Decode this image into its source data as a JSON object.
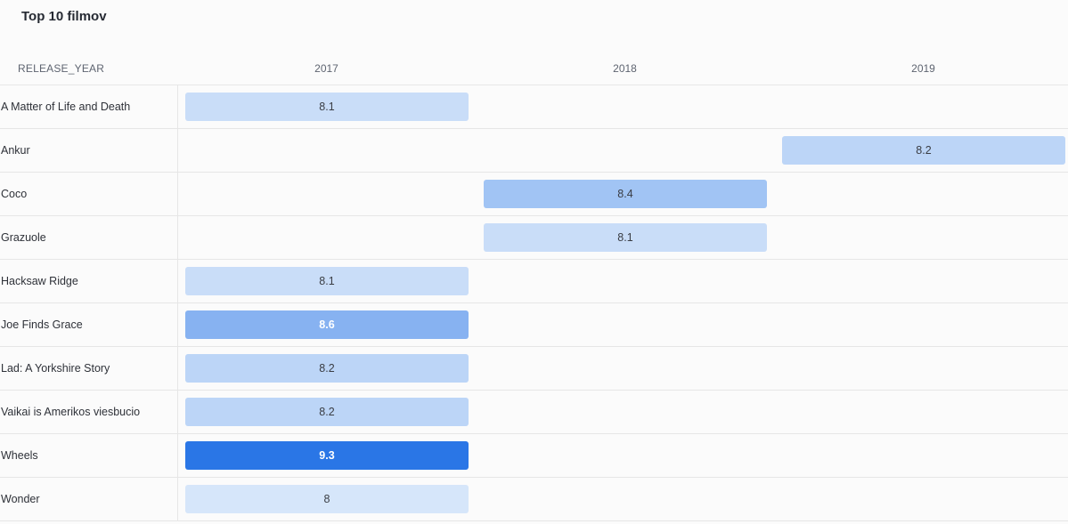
{
  "title": "Top 10 filmov",
  "header_label": "RELEASE_YEAR",
  "colors": {
    "min": "#d6e6fa",
    "max": "#2a76e6",
    "text_dark": "#3a3d44",
    "text_light": "#ffffff"
  },
  "chart_data": {
    "type": "heatmap",
    "title": "Top 10 filmov",
    "xlabel": "RELEASE_YEAR",
    "columns": [
      "2017",
      "2018",
      "2019"
    ],
    "rows": [
      {
        "name": "A Matter of Life and Death",
        "year": "2017",
        "value": 8.1
      },
      {
        "name": "Ankur",
        "year": "2019",
        "value": 8.2
      },
      {
        "name": "Coco",
        "year": "2018",
        "value": 8.4
      },
      {
        "name": "Grazuole",
        "year": "2018",
        "value": 8.1
      },
      {
        "name": "Hacksaw Ridge",
        "year": "2017",
        "value": 8.1
      },
      {
        "name": "Joe Finds Grace",
        "year": "2017",
        "value": 8.6
      },
      {
        "name": "Lad: A Yorkshire Story",
        "year": "2017",
        "value": 8.2
      },
      {
        "name": "Vaikai is Amerikos viesbucio",
        "year": "2017",
        "value": 8.2
      },
      {
        "name": "Wheels",
        "year": "2017",
        "value": 9.3
      },
      {
        "name": "Wonder",
        "year": "2017",
        "value": 8
      }
    ]
  }
}
